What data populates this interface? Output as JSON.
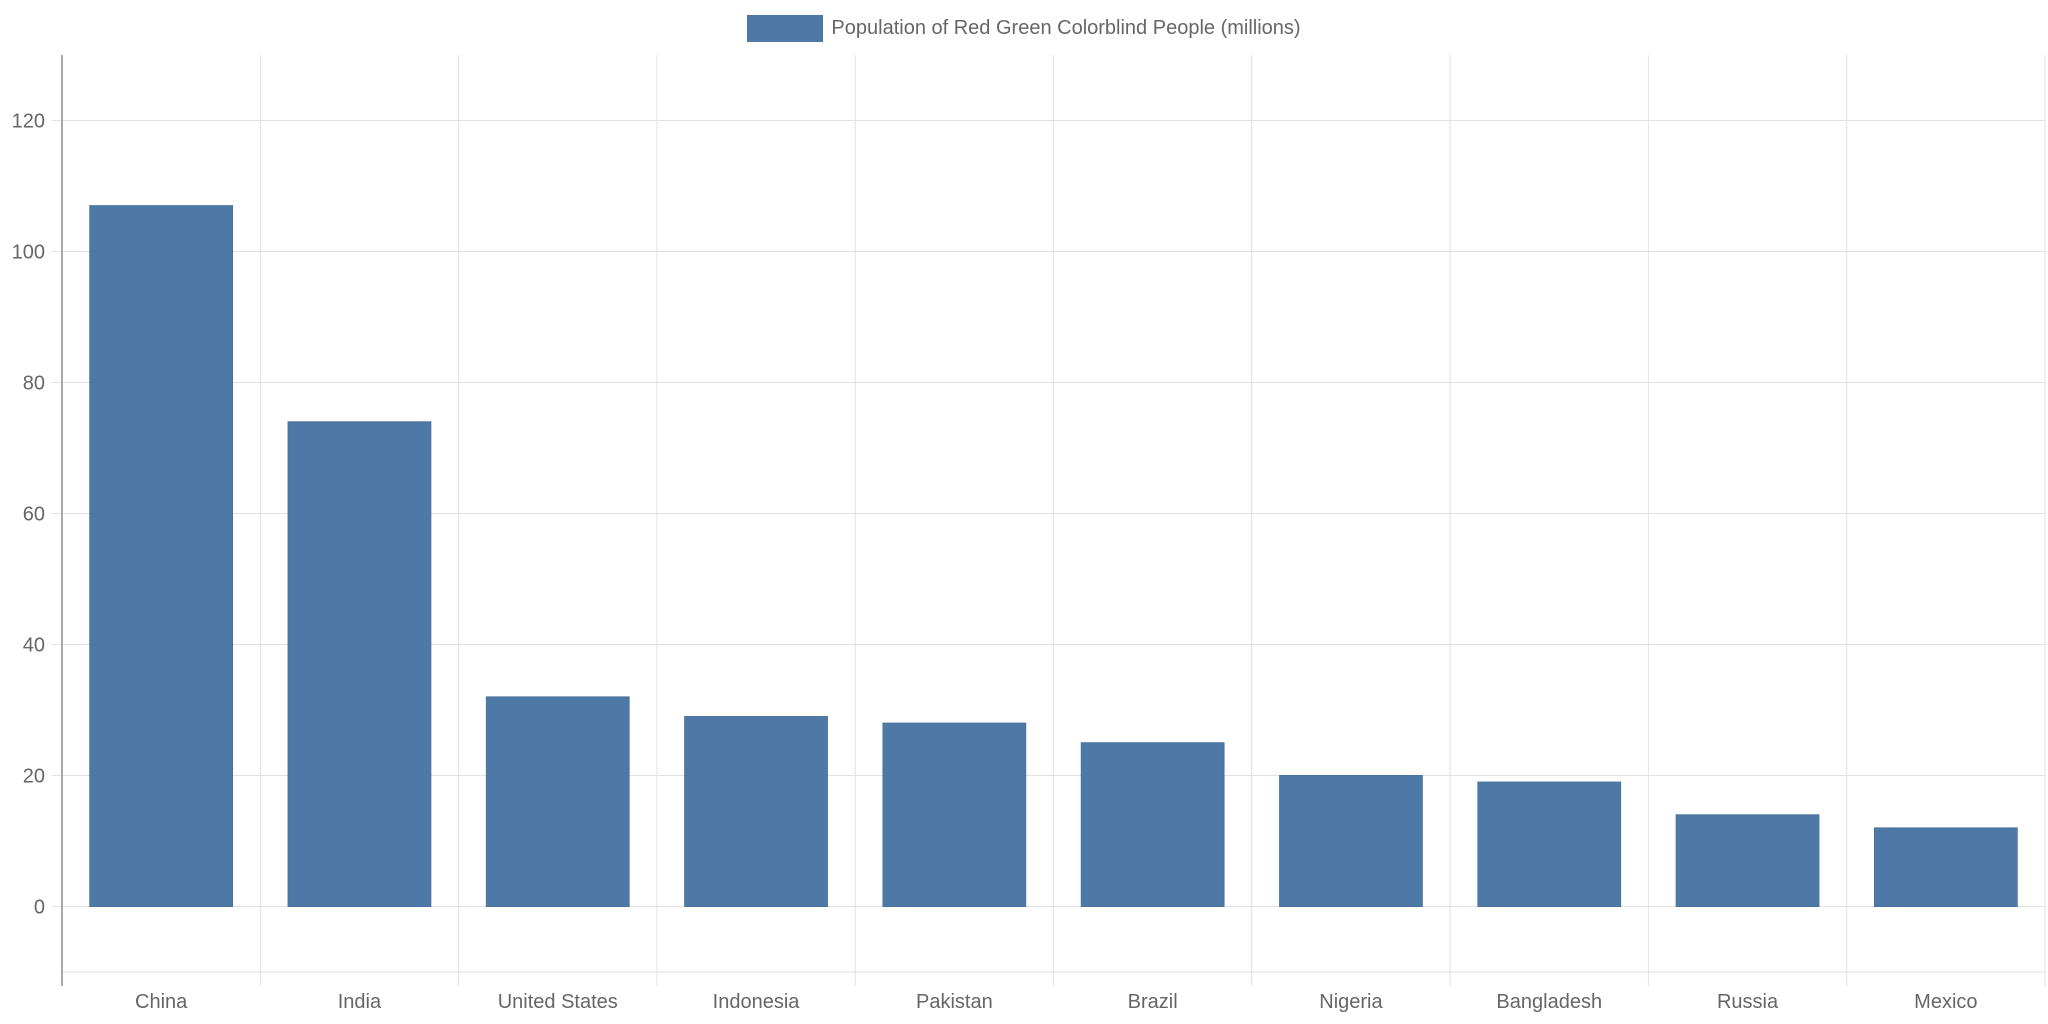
{
  "chart_data": {
    "type": "bar",
    "categories": [
      "China",
      "India",
      "United States",
      "Indonesia",
      "Pakistan",
      "Brazil",
      "Nigeria",
      "Bangladesh",
      "Russia",
      "Mexico"
    ],
    "series": [
      {
        "name": "Population of Red Green Colorblind People (millions)",
        "values": [
          107,
          74,
          32,
          29,
          28,
          25,
          20,
          19,
          14,
          12
        ],
        "color": "#4e79a7"
      }
    ],
    "ylim": [
      -10,
      130
    ],
    "yticks": [
      0,
      20,
      40,
      60,
      80,
      100,
      120
    ],
    "grid": true,
    "legend_position": "top-center"
  }
}
